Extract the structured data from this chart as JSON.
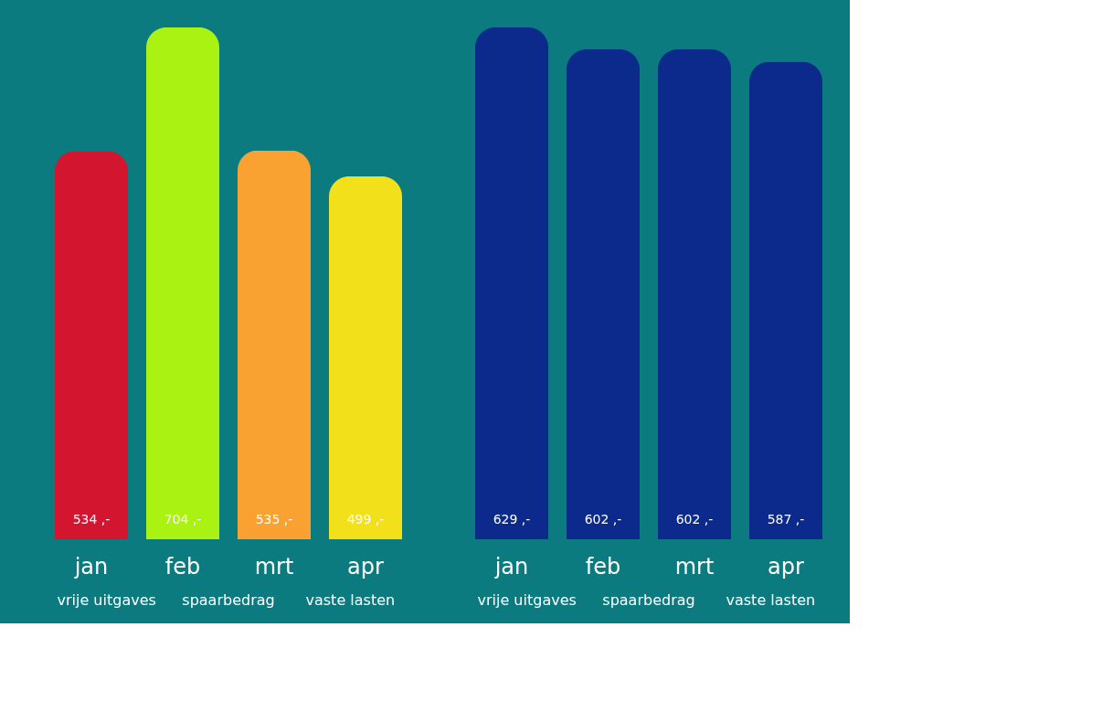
{
  "chart_data": [
    {
      "type": "bar",
      "categories": [
        "jan",
        "feb",
        "mrt",
        "apr"
      ],
      "values": [
        534,
        704,
        535,
        499
      ],
      "colors": [
        "#d41530",
        "#aaf212",
        "#f9a231",
        "#f2e01a"
      ],
      "value_labels": [
        "534 ,-",
        "704 ,-",
        "535 ,-",
        "499 ,-"
      ],
      "annotations": [
        "vrije uitgaves",
        "spaarbedrag",
        "vaste lasten"
      ]
    },
    {
      "type": "bar",
      "categories": [
        "jan",
        "feb",
        "mrt",
        "apr"
      ],
      "values": [
        629,
        602,
        602,
        587
      ],
      "colors": [
        "#0b2a8c",
        "#0b2a8c",
        "#0b2a8c",
        "#0b2a8c"
      ],
      "value_labels": [
        "629 ,-",
        "602 ,-",
        "602 ,-",
        "587 ,-"
      ],
      "annotations": [
        "vrije uitgaves",
        "spaarbedrag",
        "vaste lasten"
      ]
    }
  ]
}
